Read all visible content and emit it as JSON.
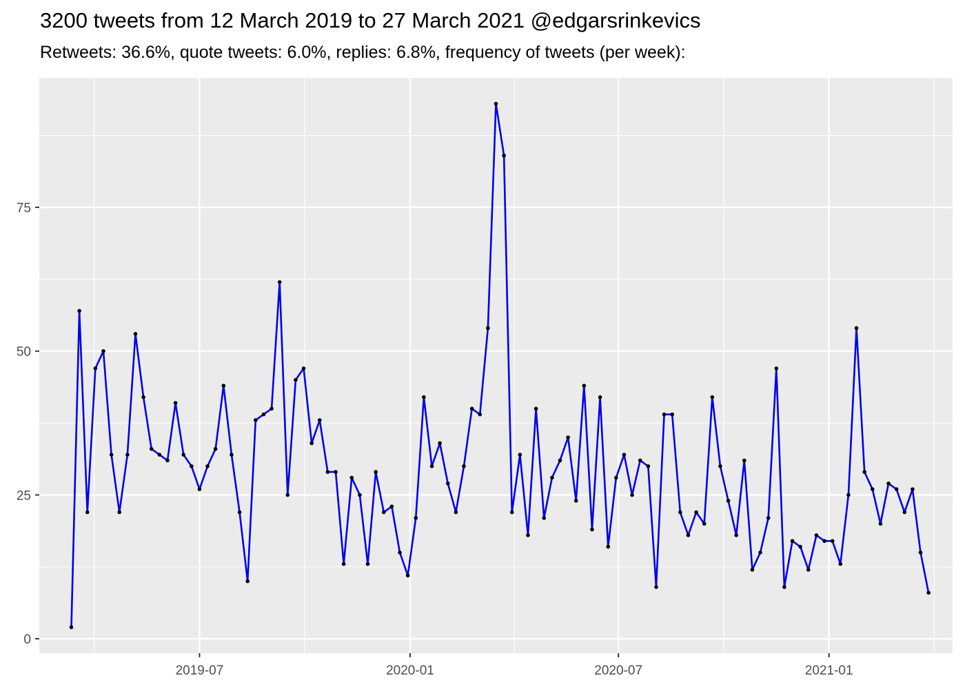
{
  "chart_data": {
    "type": "line",
    "title": "3200 tweets from 12 March 2019 to 27 March 2021 @edgarsrinkevics",
    "subtitle": "Retweets: 36.6%, quote tweets: 6.0%, replies: 6.8%, frequency of tweets (per week):",
    "xlabel": "",
    "ylabel": "",
    "x_range": [
      "2019-02-11",
      "2021-04-19"
    ],
    "ylim": [
      -2.5,
      97.5
    ],
    "y_ticks": [
      0,
      25,
      50,
      75
    ],
    "x_ticks": [
      {
        "date": "2019-07-01",
        "label": "2019-07"
      },
      {
        "date": "2020-01-01",
        "label": "2020-01"
      },
      {
        "date": "2020-07-01",
        "label": "2020-07"
      },
      {
        "date": "2021-01-01",
        "label": "2021-01"
      }
    ],
    "line_color": "#0000ee",
    "point_color": "#000000",
    "panel_background": "#ebebeb",
    "grid": true,
    "legend": "none",
    "series": [
      {
        "start_date": "2019-03-11",
        "interval_days": 7,
        "values": [
          2,
          57,
          22,
          47,
          50,
          32,
          22,
          32,
          53,
          42,
          33,
          32,
          31,
          41,
          32,
          30,
          26,
          30,
          33,
          44,
          32,
          22,
          10,
          38,
          39,
          40,
          62,
          25,
          45,
          47,
          34,
          38,
          29,
          29,
          13,
          28,
          25,
          13,
          29,
          22,
          23,
          15,
          11,
          21,
          42,
          30,
          34,
          27,
          22,
          30,
          40,
          39,
          54,
          93,
          84,
          22,
          32,
          18,
          40,
          21,
          28,
          31,
          35,
          24,
          44,
          19,
          42,
          16,
          28,
          32,
          25,
          31,
          30,
          9,
          39,
          39,
          22,
          18,
          22,
          20,
          42,
          30,
          24,
          18,
          31,
          12,
          15,
          21,
          47,
          9,
          17,
          16,
          12,
          18,
          17,
          17,
          13,
          25,
          54,
          29,
          26,
          20,
          27,
          26,
          22,
          26,
          15,
          8
        ]
      }
    ]
  }
}
